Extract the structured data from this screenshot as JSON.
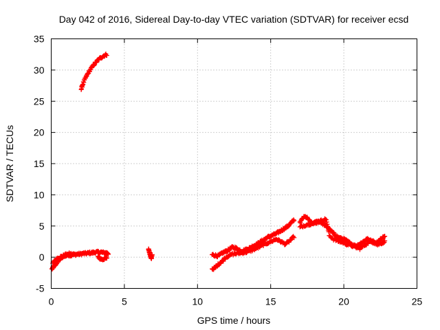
{
  "chart_data": {
    "type": "scatter",
    "title": "Day 042 of 2016, Sidereal Day-to-day VTEC variation (SDTVAR) for receiver ecsd",
    "xlabel": "GPS time / hours",
    "ylabel": "SDTVAR / TECUs",
    "xlim": [
      0,
      25
    ],
    "ylim": [
      -5,
      35
    ],
    "grid": true,
    "marker": "+",
    "xticks": [
      0,
      5,
      10,
      15,
      20,
      25
    ],
    "xtick_labels": [
      "0",
      "5",
      "10",
      "15",
      "20",
      "25"
    ],
    "yticks": [
      -5,
      0,
      5,
      10,
      15,
      20,
      25,
      30,
      35
    ],
    "ytick_labels": [
      "-5",
      "0",
      "5",
      "10",
      "15",
      "20",
      "25",
      "30",
      "35"
    ],
    "series": [
      {
        "name": "SDTVAR",
        "color": "#ff0000",
        "segments": [
          {
            "x": [
              0.05,
              0.15,
              0.25,
              0.35,
              0.45,
              0.55,
              0.7,
              0.85,
              1.0,
              1.15,
              1.3,
              1.45,
              1.6,
              1.8,
              2.0,
              2.2,
              2.4,
              2.6,
              2.8,
              3.0,
              3.2,
              3.4,
              3.6,
              3.8,
              3.9
            ],
            "y": [
              -1.9,
              -1.6,
              -1.3,
              -1.0,
              -0.7,
              -0.4,
              -0.1,
              0.1,
              0.3,
              0.5,
              0.6,
              0.5,
              0.4,
              0.5,
              0.5,
              0.6,
              0.6,
              0.7,
              0.7,
              0.8,
              0.8,
              0.8,
              0.7,
              0.7,
              0.6
            ]
          },
          {
            "x": [
              0.1,
              0.25,
              0.4,
              0.6,
              0.8,
              1.0,
              1.2,
              1.4
            ],
            "y": [
              -1.0,
              -0.6,
              -0.2,
              0.0,
              0.2,
              0.4,
              0.3,
              0.2
            ]
          },
          {
            "x": [
              3.2,
              3.35,
              3.5,
              3.65,
              3.8
            ],
            "y": [
              0.1,
              -0.2,
              -0.4,
              -0.3,
              0.0
            ]
          },
          {
            "x": [
              2.05,
              2.15,
              2.3,
              2.45,
              2.6,
              2.8,
              3.0,
              3.2,
              3.4,
              3.6,
              3.8
            ],
            "y": [
              26.9,
              27.7,
              28.5,
              29.2,
              29.8,
              30.5,
              31.1,
              31.6,
              32.0,
              32.3,
              32.5
            ]
          },
          {
            "x": [
              6.65,
              6.7,
              6.75,
              6.8,
              6.85,
              6.9
            ],
            "y": [
              1.3,
              0.9,
              0.5,
              0.1,
              -0.2,
              0.4
            ]
          },
          {
            "x": [
              11.0,
              11.2,
              11.4,
              11.6,
              11.8,
              12.0,
              12.2,
              12.4,
              12.6,
              12.8,
              13.0,
              13.2,
              13.4,
              13.6,
              13.8,
              14.0,
              14.2,
              14.4,
              14.6,
              14.8,
              15.0,
              15.2,
              15.4,
              15.6,
              15.8,
              16.0,
              16.2,
              16.4,
              16.6
            ],
            "y": [
              0.4,
              0.3,
              0.2,
              0.5,
              0.8,
              1.0,
              1.3,
              1.6,
              1.5,
              1.2,
              1.0,
              1.1,
              1.3,
              1.5,
              1.8,
              2.0,
              2.3,
              2.6,
              2.9,
              3.2,
              3.4,
              3.6,
              3.8,
              4.1,
              4.4,
              4.7,
              5.0,
              5.5,
              6.0
            ]
          },
          {
            "x": [
              11.0,
              11.2,
              11.4,
              11.6,
              11.8
            ],
            "y": [
              -1.9,
              -1.7,
              -1.2,
              -0.8,
              -0.4
            ]
          },
          {
            "x": [
              11.8,
              12.1,
              12.4,
              12.7,
              13.0,
              13.3,
              13.6,
              13.9,
              14.2,
              14.5,
              14.8,
              15.1,
              15.4,
              15.7,
              16.0,
              16.3,
              16.6
            ],
            "y": [
              -0.2,
              0.2,
              0.5,
              0.6,
              0.7,
              0.8,
              1.0,
              1.3,
              1.6,
              2.0,
              2.3,
              2.6,
              2.9,
              2.5,
              2.1,
              2.6,
              3.3
            ]
          },
          {
            "x": [
              17.0,
              17.2,
              17.4,
              17.6,
              17.8,
              18.0,
              18.2,
              18.4,
              18.6,
              18.8,
              19.0,
              19.2,
              19.4,
              19.6,
              19.8,
              20.0,
              20.2,
              20.4,
              20.6,
              20.8,
              21.0,
              21.2,
              21.4,
              21.6,
              21.8,
              22.0,
              22.2,
              22.4,
              22.6,
              22.8
            ],
            "y": [
              5.5,
              6.3,
              6.5,
              6.0,
              5.4,
              5.5,
              5.8,
              5.7,
              5.3,
              5.0,
              4.5,
              4.0,
              3.6,
              3.2,
              3.0,
              2.9,
              2.6,
              2.3,
              2.0,
              1.8,
              2.0,
              2.3,
              2.6,
              2.9,
              2.7,
              2.4,
              2.2,
              2.6,
              3.1,
              3.3
            ]
          },
          {
            "x": [
              17.0,
              17.3,
              17.6,
              17.9,
              18.2,
              18.5,
              18.8,
              19.0,
              19.3,
              19.6,
              19.9,
              20.2,
              20.5,
              20.8,
              21.1,
              21.4,
              21.7,
              22.0,
              22.3,
              22.6,
              22.8
            ],
            "y": [
              4.8,
              5.1,
              5.3,
              5.4,
              5.6,
              5.9,
              6.1,
              3.5,
              2.9,
              2.6,
              2.4,
              2.1,
              1.9,
              1.6,
              1.4,
              1.9,
              2.4,
              2.8,
              2.0,
              2.3,
              2.5
            ]
          }
        ]
      }
    ]
  }
}
